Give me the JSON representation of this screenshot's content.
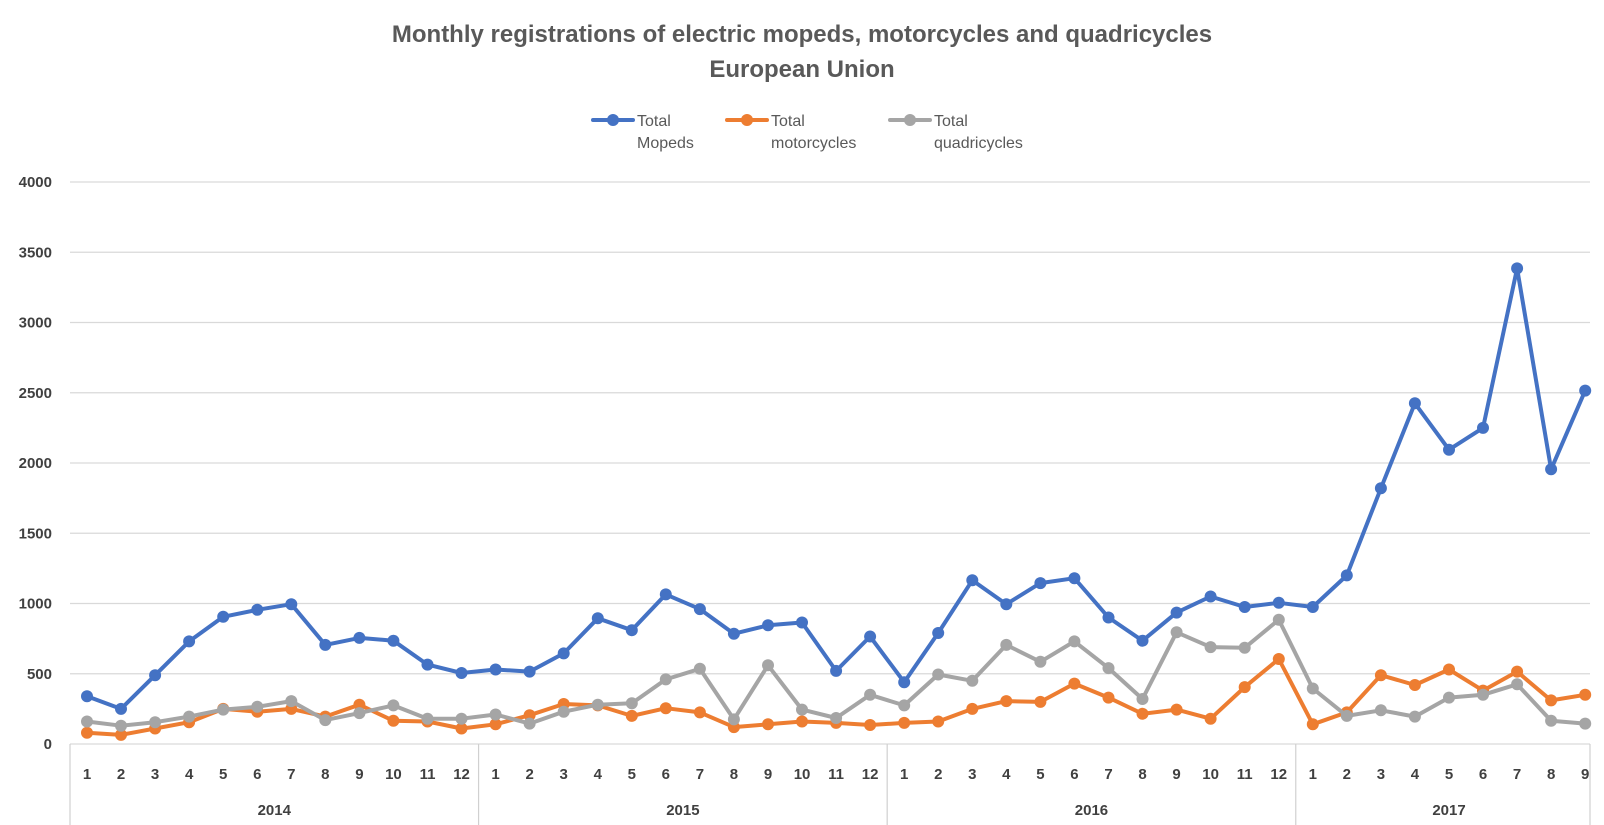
{
  "chart_data": {
    "type": "line",
    "title": "Monthly registrations of electric mopeds, motorcycles and quadricycles",
    "subtitle": "European Union",
    "xlabel": "",
    "ylabel": "",
    "ylim": [
      0,
      4000
    ],
    "yticks": [
      "0",
      "500",
      "1000",
      "1500",
      "2000",
      "2500",
      "3000",
      "3500",
      "4000"
    ],
    "grid": true,
    "legend_position": "top-center",
    "groups": [
      {
        "label": "2014",
        "months": [
          "1",
          "2",
          "3",
          "4",
          "5",
          "6",
          "7",
          "8",
          "9",
          "10",
          "11",
          "12"
        ]
      },
      {
        "label": "2015",
        "months": [
          "1",
          "2",
          "3",
          "4",
          "5",
          "6",
          "7",
          "8",
          "9",
          "10",
          "11",
          "12"
        ]
      },
      {
        "label": "2016",
        "months": [
          "1",
          "2",
          "3",
          "4",
          "5",
          "6",
          "7",
          "8",
          "9",
          "10",
          "11",
          "12"
        ]
      },
      {
        "label": "2017",
        "months": [
          "1",
          "2",
          "3",
          "4",
          "5",
          "6",
          "7",
          "8",
          "9"
        ]
      }
    ],
    "series": [
      {
        "name": "Total Mopeds",
        "legend_lines": [
          "Total",
          "Mopeds"
        ],
        "color": "#4472c4",
        "values": [
          340,
          250,
          490,
          730,
          905,
          955,
          995,
          705,
          755,
          735,
          565,
          505,
          530,
          515,
          645,
          895,
          810,
          1065,
          960,
          785,
          845,
          865,
          520,
          765,
          440,
          790,
          1165,
          995,
          1145,
          1180,
          900,
          735,
          935,
          1050,
          975,
          1005,
          975,
          1200,
          1820,
          2425,
          2095,
          2250,
          3385,
          1955,
          2515
        ]
      },
      {
        "name": "Total motorcycles",
        "legend_lines": [
          "Total",
          "motorcycles"
        ],
        "color": "#ed7d31",
        "values": [
          80,
          65,
          110,
          155,
          250,
          230,
          250,
          195,
          280,
          165,
          160,
          110,
          140,
          205,
          285,
          275,
          200,
          255,
          225,
          120,
          140,
          160,
          150,
          135,
          150,
          160,
          250,
          305,
          300,
          430,
          330,
          215,
          245,
          180,
          405,
          605,
          140,
          225,
          490,
          420,
          530,
          380,
          515,
          310,
          350
        ]
      },
      {
        "name": "Total quadricycles",
        "legend_lines": [
          "Total",
          "quadricycles"
        ],
        "color": "#a5a5a5",
        "values": [
          160,
          130,
          155,
          195,
          245,
          265,
          305,
          170,
          220,
          275,
          180,
          180,
          210,
          145,
          230,
          280,
          290,
          460,
          535,
          175,
          560,
          245,
          185,
          350,
          275,
          495,
          450,
          705,
          585,
          730,
          540,
          320,
          795,
          690,
          685,
          885,
          395,
          200,
          240,
          195,
          330,
          350,
          425,
          165,
          145
        ]
      }
    ]
  }
}
